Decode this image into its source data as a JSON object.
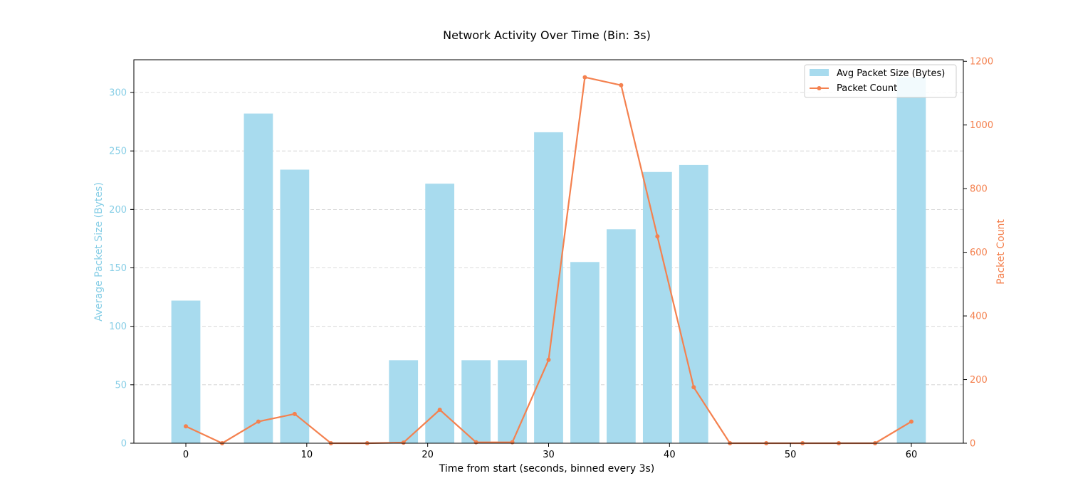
{
  "chart_data": {
    "type": "bar",
    "title": "Network Activity Over Time (Bin: 3s)",
    "xlabel": "Time from start (seconds, binned every 3s)",
    "ylabel": "Average Packet Size (Bytes)",
    "y2label": "Packet Count",
    "xlim": [
      -4.3,
      64.3
    ],
    "ylim": [
      0,
      328
    ],
    "y2lim": [
      0,
      1205
    ],
    "x_ticks": [
      0,
      10,
      20,
      30,
      40,
      50,
      60
    ],
    "y_ticks": [
      0,
      50,
      100,
      150,
      200,
      250,
      300
    ],
    "y2_ticks": [
      0,
      200,
      400,
      600,
      800,
      1000,
      1200
    ],
    "grid": "horizontal dashed",
    "legend_position": "top-right",
    "x": [
      0,
      3,
      6,
      9,
      12,
      15,
      18,
      21,
      24,
      27,
      30,
      33,
      36,
      39,
      42,
      45,
      48,
      51,
      54,
      57,
      60
    ],
    "series": [
      {
        "name": "Avg Packet Size (Bytes)",
        "kind": "bar",
        "axis": "left",
        "color": "#a8dbee",
        "values": [
          122,
          0,
          282,
          234,
          0,
          0,
          71,
          222,
          71,
          71,
          266,
          155,
          183,
          232,
          238,
          0,
          0,
          0,
          0,
          0,
          313
        ]
      },
      {
        "name": "Packet Count",
        "kind": "line",
        "axis": "right",
        "color": "#f4814f",
        "values": [
          53,
          0,
          68,
          92,
          0,
          0,
          2,
          105,
          3,
          3,
          262,
          1150,
          1125,
          650,
          176,
          0,
          0,
          0,
          0,
          0,
          68
        ]
      }
    ],
    "colors": {
      "left_axis": "#87cee6",
      "right_axis": "#f4814f",
      "grid": "#d0d0d0"
    }
  }
}
